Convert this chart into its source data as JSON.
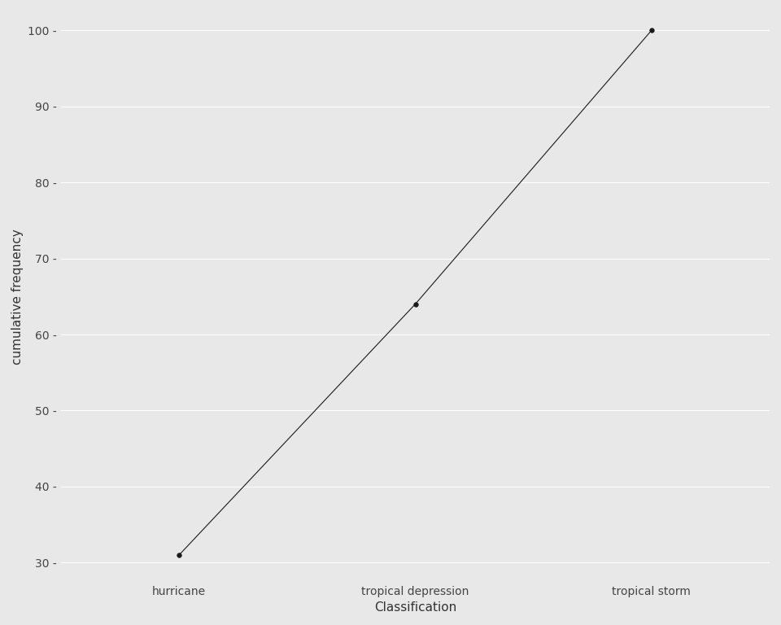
{
  "categories": [
    "hurricane",
    "tropical depression",
    "tropical storm"
  ],
  "cumulative_freq": [
    31,
    64,
    100
  ],
  "xlabel": "Classification",
  "ylabel": "cumulative frequency",
  "ylim": [
    27.5,
    102.5
  ],
  "yticks": [
    30,
    40,
    50,
    60,
    70,
    80,
    90,
    100
  ],
  "outer_bg": "#e8e8e8",
  "panel_bg": "#e8e8e8",
  "line_color": "#1a1a1a",
  "marker_color": "#1a1a1a",
  "marker_size": 4,
  "line_width": 0.8,
  "xlabel_fontsize": 11,
  "ylabel_fontsize": 11,
  "tick_fontsize": 10,
  "grid_color": "#ffffff",
  "grid_linewidth": 0.8,
  "tick_label_color": "#444444"
}
